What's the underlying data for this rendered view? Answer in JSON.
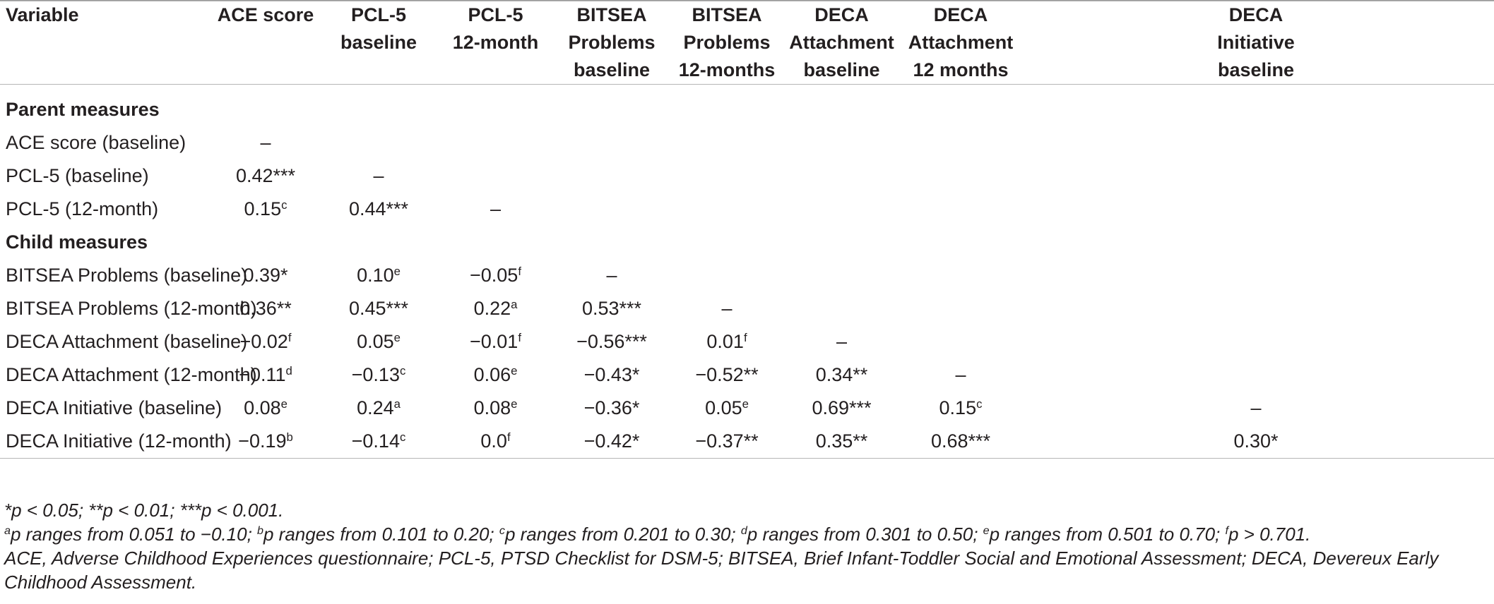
{
  "table": {
    "headers": [
      [
        "Variable"
      ],
      [
        "ACE score"
      ],
      [
        "PCL-5",
        "baseline"
      ],
      [
        "PCL-5",
        "12-month"
      ],
      [
        "BITSEA",
        "Problems",
        "baseline"
      ],
      [
        "BITSEA",
        "Problems",
        "12-months"
      ],
      [
        "DECA",
        "Attachment",
        "baseline"
      ],
      [
        "DECA",
        "Attachment",
        "12 months"
      ],
      [
        "DECA",
        "Initiative",
        "baseline"
      ]
    ],
    "sections": [
      {
        "title": "Parent measures",
        "rows": [
          {
            "label": "ACE score (baseline)",
            "cells": [
              {
                "v": "–",
                "s": ""
              },
              {
                "v": "",
                "s": ""
              },
              {
                "v": "",
                "s": ""
              },
              {
                "v": "",
                "s": ""
              },
              {
                "v": "",
                "s": ""
              },
              {
                "v": "",
                "s": ""
              },
              {
                "v": "",
                "s": ""
              },
              {
                "v": "",
                "s": ""
              }
            ]
          },
          {
            "label": "PCL-5 (baseline)",
            "cells": [
              {
                "v": "0.42***",
                "s": ""
              },
              {
                "v": "–",
                "s": ""
              },
              {
                "v": "",
                "s": ""
              },
              {
                "v": "",
                "s": ""
              },
              {
                "v": "",
                "s": ""
              },
              {
                "v": "",
                "s": ""
              },
              {
                "v": "",
                "s": ""
              },
              {
                "v": "",
                "s": ""
              }
            ]
          },
          {
            "label": "PCL-5 (12-month)",
            "cells": [
              {
                "v": "0.15",
                "s": "c"
              },
              {
                "v": "0.44***",
                "s": ""
              },
              {
                "v": "–",
                "s": ""
              },
              {
                "v": "",
                "s": ""
              },
              {
                "v": "",
                "s": ""
              },
              {
                "v": "",
                "s": ""
              },
              {
                "v": "",
                "s": ""
              },
              {
                "v": "",
                "s": ""
              }
            ]
          }
        ]
      },
      {
        "title": "Child measures",
        "rows": [
          {
            "label": "BITSEA Problems (baseline)",
            "cells": [
              {
                "v": "0.39*",
                "s": ""
              },
              {
                "v": "0.10",
                "s": "e"
              },
              {
                "v": "−0.05",
                "s": "f"
              },
              {
                "v": "–",
                "s": ""
              },
              {
                "v": "",
                "s": ""
              },
              {
                "v": "",
                "s": ""
              },
              {
                "v": "",
                "s": ""
              },
              {
                "v": "",
                "s": ""
              }
            ]
          },
          {
            "label": "BITSEA Problems (12-month)",
            "cells": [
              {
                "v": "0.36**",
                "s": ""
              },
              {
                "v": "0.45***",
                "s": ""
              },
              {
                "v": "0.22",
                "s": "a"
              },
              {
                "v": "0.53***",
                "s": ""
              },
              {
                "v": "–",
                "s": ""
              },
              {
                "v": "",
                "s": ""
              },
              {
                "v": "",
                "s": ""
              },
              {
                "v": "",
                "s": ""
              }
            ]
          },
          {
            "label": "DECA Attachment (baseline)",
            "cells": [
              {
                "v": "−0.02",
                "s": "f"
              },
              {
                "v": "0.05",
                "s": "e"
              },
              {
                "v": "−0.01",
                "s": "f"
              },
              {
                "v": "−0.56***",
                "s": ""
              },
              {
                "v": "0.01",
                "s": "f"
              },
              {
                "v": "–",
                "s": ""
              },
              {
                "v": "",
                "s": ""
              },
              {
                "v": "",
                "s": ""
              }
            ]
          },
          {
            "label": "DECA Attachment (12-month)",
            "cells": [
              {
                "v": "−0.11",
                "s": "d"
              },
              {
                "v": "−0.13",
                "s": "c"
              },
              {
                "v": "0.06",
                "s": "e"
              },
              {
                "v": "−0.43*",
                "s": ""
              },
              {
                "v": "−0.52**",
                "s": ""
              },
              {
                "v": "0.34**",
                "s": ""
              },
              {
                "v": "–",
                "s": ""
              },
              {
                "v": "",
                "s": ""
              }
            ]
          },
          {
            "label": "DECA Initiative (baseline)",
            "cells": [
              {
                "v": "0.08",
                "s": "e"
              },
              {
                "v": "0.24",
                "s": "a"
              },
              {
                "v": "0.08",
                "s": "e"
              },
              {
                "v": "−0.36*",
                "s": ""
              },
              {
                "v": "0.05",
                "s": "e"
              },
              {
                "v": "0.69***",
                "s": ""
              },
              {
                "v": "0.15",
                "s": "c"
              },
              {
                "v": "–",
                "s": ""
              }
            ]
          },
          {
            "label": "DECA Initiative (12-month)",
            "cells": [
              {
                "v": "−0.19",
                "s": "b"
              },
              {
                "v": "−0.14",
                "s": "c"
              },
              {
                "v": "0.0",
                "s": "f"
              },
              {
                "v": "−0.42*",
                "s": ""
              },
              {
                "v": "−0.37**",
                "s": ""
              },
              {
                "v": "0.35**",
                "s": ""
              },
              {
                "v": "0.68***",
                "s": ""
              },
              {
                "v": "0.30*",
                "s": ""
              }
            ]
          }
        ]
      }
    ]
  },
  "notes": {
    "significance": "*p < 0.05; **p < 0.01; ***p < 0.001.",
    "ranges": [
      {
        "sup": "a",
        "text": "p ranges from 0.051 to −0.10; "
      },
      {
        "sup": "b",
        "text": "p ranges from 0.101 to 0.20; "
      },
      {
        "sup": "c",
        "text": "p ranges from 0.201 to 0.30; "
      },
      {
        "sup": "d",
        "text": "p ranges from 0.301 to 0.50; "
      },
      {
        "sup": "e",
        "text": "p ranges from 0.501 to 0.70; "
      },
      {
        "sup": "f",
        "text": "p > 0.701."
      }
    ],
    "abbreviations": "ACE, Adverse Childhood Experiences questionnaire; PCL-5, PTSD Checklist for DSM-5; BITSEA, Brief Infant-Toddler Social and Emotional Assessment; DECA, Devereux Early Childhood Assessment."
  }
}
